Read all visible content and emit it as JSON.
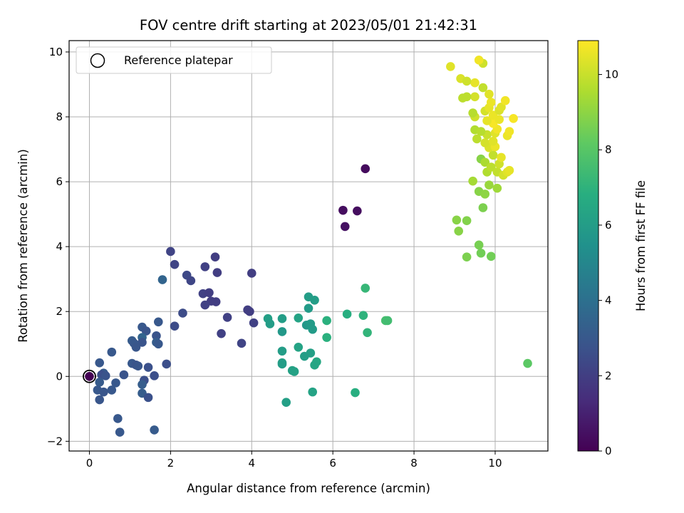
{
  "chart_data": {
    "type": "scatter",
    "title": "FOV centre drift starting at 2023/05/01 21:42:31",
    "xlabel": "Angular distance from reference (arcmin)",
    "ylabel": "Rotation from reference (arcmin)",
    "xlim": [
      -0.5,
      11.3
    ],
    "ylim": [
      -2.3,
      10.35
    ],
    "x_ticks": [
      0,
      2,
      4,
      6,
      8,
      10
    ],
    "y_ticks": [
      -2,
      0,
      2,
      4,
      6,
      8,
      10
    ],
    "grid": true,
    "legend": {
      "placement": "top-left",
      "entries": [
        "Reference platepar"
      ]
    },
    "reference_point": {
      "x": 0,
      "y": 0,
      "label": "Reference platepar"
    },
    "colorbar": {
      "label": "Hours from first FF file",
      "range": [
        0,
        10.9
      ],
      "ticks": [
        0,
        2,
        4,
        6,
        8,
        10
      ],
      "colormap": "viridis"
    },
    "points": [
      {
        "x": 0.0,
        "y": 0.0,
        "t": 0.0
      },
      {
        "x": 6.8,
        "y": 6.4,
        "t": 0.3
      },
      {
        "x": 6.25,
        "y": 5.12,
        "t": 0.4
      },
      {
        "x": 6.6,
        "y": 5.1,
        "t": 0.4
      },
      {
        "x": 6.3,
        "y": 4.62,
        "t": 0.5
      },
      {
        "x": 2.0,
        "y": 3.85,
        "t": 2.2
      },
      {
        "x": 2.1,
        "y": 3.45,
        "t": 2.2
      },
      {
        "x": 3.1,
        "y": 3.68,
        "t": 2.0
      },
      {
        "x": 2.85,
        "y": 3.38,
        "t": 2.1
      },
      {
        "x": 3.15,
        "y": 3.2,
        "t": 2.0
      },
      {
        "x": 4.0,
        "y": 3.18,
        "t": 2.0
      },
      {
        "x": 2.4,
        "y": 3.12,
        "t": 2.4
      },
      {
        "x": 2.5,
        "y": 2.95,
        "t": 2.3
      },
      {
        "x": 2.8,
        "y": 2.55,
        "t": 2.1
      },
      {
        "x": 2.95,
        "y": 2.58,
        "t": 2.0
      },
      {
        "x": 3.0,
        "y": 2.32,
        "t": 2.0
      },
      {
        "x": 3.12,
        "y": 2.3,
        "t": 2.0
      },
      {
        "x": 2.85,
        "y": 2.2,
        "t": 2.1
      },
      {
        "x": 3.9,
        "y": 2.05,
        "t": 2.0
      },
      {
        "x": 3.95,
        "y": 2.0,
        "t": 2.0
      },
      {
        "x": 2.3,
        "y": 1.95,
        "t": 2.5
      },
      {
        "x": 3.4,
        "y": 1.82,
        "t": 2.1
      },
      {
        "x": 4.05,
        "y": 1.65,
        "t": 2.1
      },
      {
        "x": 2.1,
        "y": 1.55,
        "t": 2.5
      },
      {
        "x": 3.25,
        "y": 1.32,
        "t": 2.1
      },
      {
        "x": 3.75,
        "y": 1.02,
        "t": 2.2
      },
      {
        "x": 1.8,
        "y": 2.98,
        "t": 3.5
      },
      {
        "x": 1.7,
        "y": 1.68,
        "t": 3.0
      },
      {
        "x": 1.3,
        "y": 1.52,
        "t": 3.0
      },
      {
        "x": 1.4,
        "y": 1.4,
        "t": 2.8
      },
      {
        "x": 1.65,
        "y": 1.25,
        "t": 2.8
      },
      {
        "x": 1.3,
        "y": 1.2,
        "t": 3.5
      },
      {
        "x": 1.05,
        "y": 1.1,
        "t": 3.1
      },
      {
        "x": 1.3,
        "y": 1.05,
        "t": 2.8
      },
      {
        "x": 1.1,
        "y": 1.02,
        "t": 3.0
      },
      {
        "x": 1.65,
        "y": 1.05,
        "t": 3.2
      },
      {
        "x": 1.7,
        "y": 1.0,
        "t": 3.0
      },
      {
        "x": 1.15,
        "y": 0.9,
        "t": 2.9
      },
      {
        "x": 0.55,
        "y": 0.75,
        "t": 3.0
      },
      {
        "x": 1.9,
        "y": 0.38,
        "t": 2.6
      },
      {
        "x": 1.05,
        "y": 0.4,
        "t": 3.0
      },
      {
        "x": 1.15,
        "y": 0.35,
        "t": 2.8
      },
      {
        "x": 1.2,
        "y": 0.32,
        "t": 2.9
      },
      {
        "x": 1.45,
        "y": 0.28,
        "t": 2.7
      },
      {
        "x": 0.25,
        "y": 0.42,
        "t": 3.0
      },
      {
        "x": 0.35,
        "y": 0.1,
        "t": 3.1
      },
      {
        "x": 0.3,
        "y": 0.05,
        "t": 2.6
      },
      {
        "x": 0.4,
        "y": 0.02,
        "t": 2.8
      },
      {
        "x": 0.85,
        "y": 0.05,
        "t": 2.8
      },
      {
        "x": 1.6,
        "y": 0.02,
        "t": 2.6
      },
      {
        "x": 1.35,
        "y": -0.12,
        "t": 2.6
      },
      {
        "x": 0.25,
        "y": -0.18,
        "t": 3.1
      },
      {
        "x": 0.65,
        "y": -0.2,
        "t": 3.0
      },
      {
        "x": 1.3,
        "y": -0.25,
        "t": 3.2
      },
      {
        "x": 0.2,
        "y": -0.42,
        "t": 3.0
      },
      {
        "x": 0.55,
        "y": -0.42,
        "t": 3.0
      },
      {
        "x": 0.35,
        "y": -0.48,
        "t": 2.9
      },
      {
        "x": 1.3,
        "y": -0.52,
        "t": 3.2
      },
      {
        "x": 1.45,
        "y": -0.65,
        "t": 2.7
      },
      {
        "x": 0.25,
        "y": -0.72,
        "t": 2.9
      },
      {
        "x": 0.7,
        "y": -1.3,
        "t": 3.0
      },
      {
        "x": 0.75,
        "y": -1.72,
        "t": 3.0
      },
      {
        "x": 1.6,
        "y": -1.65,
        "t": 3.1
      },
      {
        "x": 5.4,
        "y": 2.45,
        "t": 6.0
      },
      {
        "x": 5.55,
        "y": 2.35,
        "t": 6.0
      },
      {
        "x": 6.8,
        "y": 2.72,
        "t": 7.2
      },
      {
        "x": 5.4,
        "y": 2.1,
        "t": 5.9
      },
      {
        "x": 6.35,
        "y": 1.92,
        "t": 6.8
      },
      {
        "x": 6.75,
        "y": 1.88,
        "t": 7.0
      },
      {
        "x": 4.4,
        "y": 1.78,
        "t": 6.1
      },
      {
        "x": 4.75,
        "y": 1.78,
        "t": 6.0
      },
      {
        "x": 5.15,
        "y": 1.8,
        "t": 6.3
      },
      {
        "x": 4.45,
        "y": 1.62,
        "t": 6.0
      },
      {
        "x": 5.85,
        "y": 1.72,
        "t": 6.9
      },
      {
        "x": 5.35,
        "y": 1.58,
        "t": 5.8
      },
      {
        "x": 5.45,
        "y": 1.62,
        "t": 5.9
      },
      {
        "x": 5.5,
        "y": 1.45,
        "t": 5.9
      },
      {
        "x": 4.75,
        "y": 1.38,
        "t": 5.8
      },
      {
        "x": 6.85,
        "y": 1.35,
        "t": 7.1
      },
      {
        "x": 5.85,
        "y": 1.2,
        "t": 6.9
      },
      {
        "x": 5.15,
        "y": 0.9,
        "t": 6.3
      },
      {
        "x": 4.75,
        "y": 0.78,
        "t": 6.0
      },
      {
        "x": 5.45,
        "y": 0.72,
        "t": 6.1
      },
      {
        "x": 5.3,
        "y": 0.62,
        "t": 6.0
      },
      {
        "x": 5.6,
        "y": 0.45,
        "t": 6.5
      },
      {
        "x": 4.75,
        "y": 0.42,
        "t": 6.2
      },
      {
        "x": 4.75,
        "y": 0.38,
        "t": 6.0
      },
      {
        "x": 5.55,
        "y": 0.35,
        "t": 6.4
      },
      {
        "x": 5.0,
        "y": 0.18,
        "t": 6.2
      },
      {
        "x": 5.05,
        "y": 0.15,
        "t": 6.2
      },
      {
        "x": 5.5,
        "y": -0.48,
        "t": 6.3
      },
      {
        "x": 6.55,
        "y": -0.5,
        "t": 6.8
      },
      {
        "x": 4.85,
        "y": -0.8,
        "t": 6.1
      },
      {
        "x": 7.3,
        "y": 1.72,
        "t": 7.6
      },
      {
        "x": 7.35,
        "y": 1.72,
        "t": 7.5
      },
      {
        "x": 10.8,
        "y": 0.4,
        "t": 8.1
      },
      {
        "x": 9.6,
        "y": 4.05,
        "t": 8.6
      },
      {
        "x": 9.65,
        "y": 3.8,
        "t": 8.5
      },
      {
        "x": 9.3,
        "y": 3.68,
        "t": 8.7
      },
      {
        "x": 9.9,
        "y": 3.7,
        "t": 8.5
      },
      {
        "x": 9.05,
        "y": 4.82,
        "t": 8.9
      },
      {
        "x": 9.3,
        "y": 4.8,
        "t": 8.8
      },
      {
        "x": 9.1,
        "y": 4.48,
        "t": 8.9
      },
      {
        "x": 9.7,
        "y": 5.2,
        "t": 8.7
      },
      {
        "x": 9.6,
        "y": 5.7,
        "t": 8.9
      },
      {
        "x": 9.75,
        "y": 5.62,
        "t": 9.0
      },
      {
        "x": 9.85,
        "y": 5.9,
        "t": 9.2
      },
      {
        "x": 10.05,
        "y": 5.8,
        "t": 9.3
      },
      {
        "x": 9.45,
        "y": 6.02,
        "t": 9.4
      },
      {
        "x": 9.65,
        "y": 6.7,
        "t": 8.9
      },
      {
        "x": 9.8,
        "y": 6.3,
        "t": 9.6
      },
      {
        "x": 9.75,
        "y": 6.6,
        "t": 9.5
      },
      {
        "x": 9.9,
        "y": 6.45,
        "t": 9.8
      },
      {
        "x": 10.05,
        "y": 6.3,
        "t": 9.9
      },
      {
        "x": 10.2,
        "y": 6.2,
        "t": 10.2
      },
      {
        "x": 10.3,
        "y": 6.3,
        "t": 10.4
      },
      {
        "x": 10.1,
        "y": 6.55,
        "t": 10.1
      },
      {
        "x": 10.35,
        "y": 6.35,
        "t": 10.5
      },
      {
        "x": 9.95,
        "y": 6.82,
        "t": 9.9
      },
      {
        "x": 10.15,
        "y": 6.75,
        "t": 10.5
      },
      {
        "x": 9.85,
        "y": 7.05,
        "t": 10.3
      },
      {
        "x": 10.0,
        "y": 7.08,
        "t": 10.6
      },
      {
        "x": 9.75,
        "y": 7.2,
        "t": 10.2
      },
      {
        "x": 9.95,
        "y": 7.25,
        "t": 10.4
      },
      {
        "x": 9.55,
        "y": 7.32,
        "t": 9.8
      },
      {
        "x": 9.8,
        "y": 7.45,
        "t": 10.0
      },
      {
        "x": 10.0,
        "y": 7.5,
        "t": 10.4
      },
      {
        "x": 10.3,
        "y": 7.42,
        "t": 10.6
      },
      {
        "x": 10.35,
        "y": 7.55,
        "t": 10.7
      },
      {
        "x": 9.5,
        "y": 7.6,
        "t": 9.6
      },
      {
        "x": 9.65,
        "y": 7.55,
        "t": 9.7
      },
      {
        "x": 10.05,
        "y": 7.62,
        "t": 10.7
      },
      {
        "x": 9.95,
        "y": 7.8,
        "t": 10.8
      },
      {
        "x": 9.8,
        "y": 7.88,
        "t": 10.5
      },
      {
        "x": 10.1,
        "y": 7.92,
        "t": 10.6
      },
      {
        "x": 10.45,
        "y": 7.95,
        "t": 10.8
      },
      {
        "x": 9.5,
        "y": 8.0,
        "t": 10.1
      },
      {
        "x": 9.95,
        "y": 8.05,
        "t": 10.6
      },
      {
        "x": 9.45,
        "y": 8.12,
        "t": 9.7
      },
      {
        "x": 9.75,
        "y": 8.18,
        "t": 10.2
      },
      {
        "x": 10.1,
        "y": 8.2,
        "t": 10.3
      },
      {
        "x": 9.85,
        "y": 8.28,
        "t": 10.5
      },
      {
        "x": 10.15,
        "y": 8.3,
        "t": 10.4
      },
      {
        "x": 9.9,
        "y": 8.45,
        "t": 10.6
      },
      {
        "x": 10.25,
        "y": 8.5,
        "t": 10.7
      },
      {
        "x": 9.5,
        "y": 8.62,
        "t": 10.2
      },
      {
        "x": 9.2,
        "y": 8.58,
        "t": 9.8
      },
      {
        "x": 9.3,
        "y": 8.62,
        "t": 9.8
      },
      {
        "x": 9.85,
        "y": 8.7,
        "t": 10.4
      },
      {
        "x": 9.7,
        "y": 8.9,
        "t": 9.9
      },
      {
        "x": 9.5,
        "y": 9.05,
        "t": 10.5
      },
      {
        "x": 9.15,
        "y": 9.18,
        "t": 10.3
      },
      {
        "x": 9.3,
        "y": 9.1,
        "t": 10.1
      },
      {
        "x": 8.9,
        "y": 9.55,
        "t": 10.4
      },
      {
        "x": 9.7,
        "y": 9.65,
        "t": 10.1
      },
      {
        "x": 9.6,
        "y": 9.75,
        "t": 10.7
      }
    ]
  }
}
